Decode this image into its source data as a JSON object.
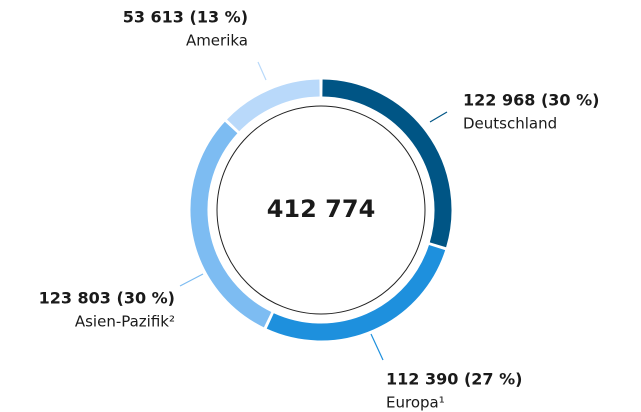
{
  "chart_data": {
    "type": "donut",
    "center_label": "412 774",
    "categories": [
      "Deutschland",
      "Europa¹",
      "Asien-Pazifik²",
      "Amerika"
    ],
    "values": [
      122968,
      112390,
      123803,
      53613
    ],
    "value_labels": [
      "122 968 (30 %)",
      "112 390 (27 %)",
      "123 803 (30 %)",
      "53 613 (13 %)"
    ],
    "colors": [
      "#005585",
      "#1e90dd",
      "#7dbcf2",
      "#b9d9fa"
    ]
  }
}
